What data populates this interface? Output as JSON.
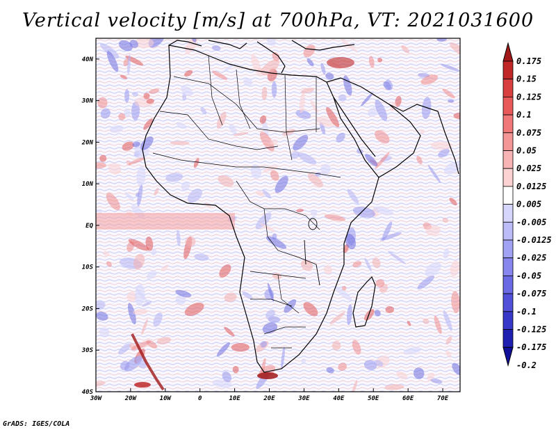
{
  "title": "Vertical velocity [m/s] at 700hPa, VT: 2021031600",
  "footer": "GrADS: IGES/COLA",
  "map": {
    "lat_labels": [
      "40N",
      "30N",
      "20N",
      "10N",
      "EQ",
      "10S",
      "20S",
      "30S",
      "40S"
    ],
    "lon_labels": [
      "30W",
      "20W",
      "10W",
      "0",
      "10E",
      "20E",
      "30E",
      "40E",
      "50E",
      "60E",
      "70E"
    ],
    "lat_range": [
      -40,
      45
    ],
    "lon_range": [
      -30,
      75
    ]
  },
  "colorbar": {
    "labels": [
      "0.175",
      "0.15",
      "0.125",
      "0.1",
      "0.075",
      "0.05",
      "0.025",
      "0.0125",
      "0.005",
      "-0.005",
      "-0.0125",
      "-0.025",
      "-0.05",
      "-0.075",
      "-0.1",
      "-0.125",
      "-0.175",
      "-0.2"
    ],
    "colors": [
      "#a01818",
      "#c02828",
      "#d84040",
      "#e85a5a",
      "#f07878",
      "#f49696",
      "#f8b4b4",
      "#fcd2d2",
      "#ffffff",
      "#d6d6fc",
      "#bcbcf8",
      "#a2a2f4",
      "#8686ee",
      "#6a6ae4",
      "#5050d8",
      "#3838c8",
      "#2020b0",
      "#10109a"
    ]
  }
}
